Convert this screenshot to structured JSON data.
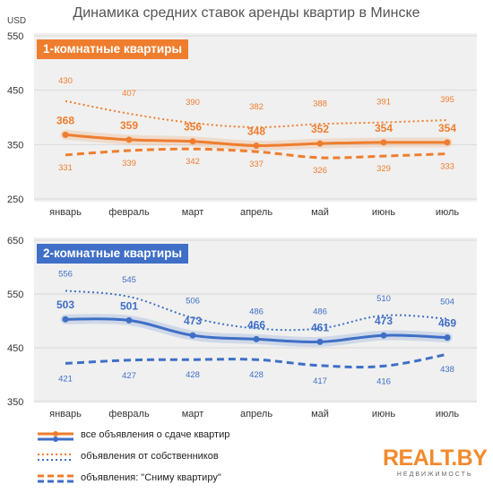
{
  "title": "Динамика средних ставок аренды квартир в Минске",
  "unit_label": "USD",
  "colors": {
    "one_room": "#ef7d2e",
    "two_room": "#3f6fc6",
    "grid": "#d9d9d9",
    "panel_bg": "#f2f2f2"
  },
  "chart_data": [
    {
      "type": "line",
      "title": "1-комнатные квартиры",
      "categories": [
        "январь",
        "февраль",
        "март",
        "апрель",
        "май",
        "июнь",
        "июль"
      ],
      "ylim": [
        250,
        550
      ],
      "yticks": [
        250,
        350,
        450,
        550
      ],
      "series": [
        {
          "name": "все объявления о сдаче квартир",
          "style": "solid",
          "values": [
            368,
            359,
            356,
            348,
            352,
            354,
            354
          ]
        },
        {
          "name": "объявления от собственников",
          "style": "dotted",
          "values": [
            430,
            407,
            390,
            382,
            388,
            391,
            395
          ]
        },
        {
          "name": "объявления: \"Сниму квартиру\"",
          "style": "dashed",
          "values": [
            331,
            339,
            342,
            337,
            326,
            329,
            333
          ]
        }
      ]
    },
    {
      "type": "line",
      "title": "2-комнатные квартиры",
      "categories": [
        "январь",
        "февраль",
        "март",
        "апрель",
        "май",
        "июнь",
        "июль"
      ],
      "ylim": [
        350,
        650
      ],
      "yticks": [
        350,
        450,
        550,
        650
      ],
      "series": [
        {
          "name": "все объявления о сдаче квартир",
          "style": "solid",
          "values": [
            503,
            501,
            473,
            466,
            461,
            473,
            469
          ]
        },
        {
          "name": "объявления от собственников",
          "style": "dotted",
          "values": [
            556,
            545,
            506,
            486,
            486,
            510,
            504
          ]
        },
        {
          "name": "объявления: \"Сниму квартиру\"",
          "style": "dashed",
          "values": [
            421,
            427,
            428,
            428,
            417,
            416,
            438
          ]
        }
      ]
    }
  ],
  "legend": [
    {
      "label": "все объявления о сдаче квартир",
      "style": "solid"
    },
    {
      "label": "объявления от собственников",
      "style": "dotted"
    },
    {
      "label": "объявления: \"Сниму квартиру\"",
      "style": "dashed"
    }
  ],
  "logo": {
    "main": "REALT.BY",
    "sub": "НЕДВИЖИМОСТЬ"
  }
}
